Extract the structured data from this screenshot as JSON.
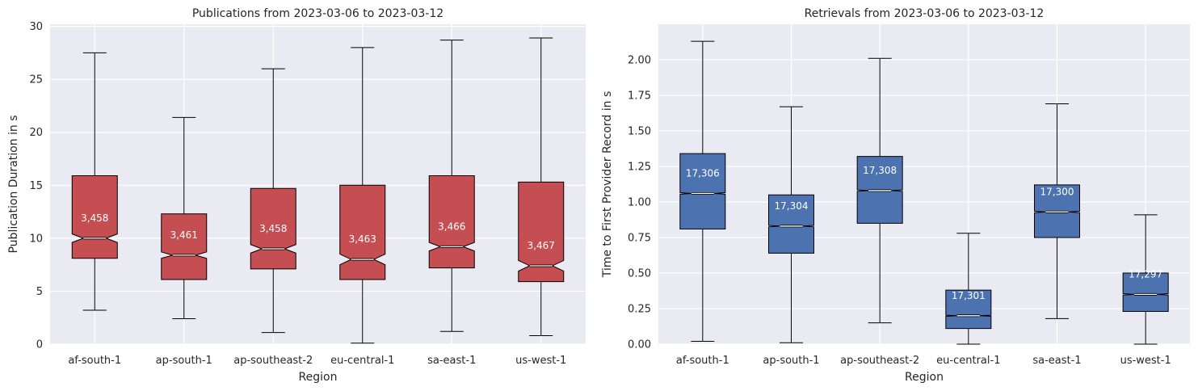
{
  "chart_data": [
    {
      "type": "box",
      "title": "Publications from 2023-03-06 to 2023-03-12",
      "xlabel": "Region",
      "ylabel": "Publication Duration in s",
      "ylim": [
        0,
        30.2
      ],
      "yticks": [
        0,
        5,
        10,
        15,
        20,
        25,
        30
      ],
      "ytick_labels": [
        "0",
        "5",
        "10",
        "15",
        "20",
        "25",
        "30"
      ],
      "grid": true,
      "notched": true,
      "color": "#c44e52",
      "categories": [
        "af-south-1",
        "ap-south-1",
        "ap-southeast-2",
        "eu-central-1",
        "sa-east-1",
        "us-west-1"
      ],
      "boxes": [
        {
          "whislo": 3.2,
          "q1": 8.1,
          "med": 10.0,
          "q3": 15.9,
          "whishi": 27.5,
          "notch_lo": 9.6,
          "notch_hi": 10.4,
          "count": "3,458"
        },
        {
          "whislo": 2.4,
          "q1": 6.1,
          "med": 8.4,
          "q3": 12.3,
          "whishi": 21.4,
          "notch_lo": 8.1,
          "notch_hi": 8.7,
          "count": "3,461"
        },
        {
          "whislo": 1.1,
          "q1": 7.1,
          "med": 9.0,
          "q3": 14.7,
          "whishi": 26.0,
          "notch_lo": 8.6,
          "notch_hi": 9.4,
          "count": "3,458"
        },
        {
          "whislo": 0.1,
          "q1": 6.1,
          "med": 8.0,
          "q3": 15.0,
          "whishi": 28.0,
          "notch_lo": 7.5,
          "notch_hi": 8.5,
          "count": "3,463"
        },
        {
          "whislo": 1.2,
          "q1": 7.2,
          "med": 9.2,
          "q3": 15.9,
          "whishi": 28.7,
          "notch_lo": 8.8,
          "notch_hi": 9.6,
          "count": "3,466"
        },
        {
          "whislo": 0.8,
          "q1": 5.9,
          "med": 7.4,
          "q3": 15.3,
          "whishi": 28.9,
          "notch_lo": 6.9,
          "notch_hi": 7.9,
          "count": "3,467"
        }
      ]
    },
    {
      "type": "box",
      "title": "Retrievals from 2023-03-06 to 2023-03-12",
      "xlabel": "Region",
      "ylabel": "Time to First Provider Record in s",
      "ylim": [
        0,
        2.25
      ],
      "yticks": [
        0,
        0.25,
        0.5,
        0.75,
        1.0,
        1.25,
        1.5,
        1.75,
        2.0
      ],
      "ytick_labels": [
        "0.00",
        "0.25",
        "0.50",
        "0.75",
        "1.00",
        "1.25",
        "1.50",
        "1.75",
        "2.00"
      ],
      "grid": true,
      "notched": true,
      "color": "#4c72b0",
      "categories": [
        "af-south-1",
        "ap-south-1",
        "ap-southeast-2",
        "eu-central-1",
        "sa-east-1",
        "us-west-1"
      ],
      "boxes": [
        {
          "whislo": 0.02,
          "q1": 0.81,
          "med": 1.06,
          "q3": 1.34,
          "whishi": 2.13,
          "notch_lo": 1.055,
          "notch_hi": 1.065,
          "count": "17,306"
        },
        {
          "whislo": 0.01,
          "q1": 0.64,
          "med": 0.83,
          "q3": 1.05,
          "whishi": 1.67,
          "notch_lo": 0.825,
          "notch_hi": 0.835,
          "count": "17,304"
        },
        {
          "whislo": 0.15,
          "q1": 0.85,
          "med": 1.08,
          "q3": 1.32,
          "whishi": 2.01,
          "notch_lo": 1.075,
          "notch_hi": 1.085,
          "count": "17,308"
        },
        {
          "whislo": 0.0,
          "q1": 0.11,
          "med": 0.2,
          "q3": 0.38,
          "whishi": 0.78,
          "notch_lo": 0.196,
          "notch_hi": 0.204,
          "count": "17,301"
        },
        {
          "whislo": 0.18,
          "q1": 0.75,
          "med": 0.93,
          "q3": 1.12,
          "whishi": 1.69,
          "notch_lo": 0.925,
          "notch_hi": 0.935,
          "count": "17,300"
        },
        {
          "whislo": 0.0,
          "q1": 0.23,
          "med": 0.35,
          "q3": 0.5,
          "whishi": 0.91,
          "notch_lo": 0.345,
          "notch_hi": 0.355,
          "count": "17,297"
        }
      ]
    }
  ]
}
